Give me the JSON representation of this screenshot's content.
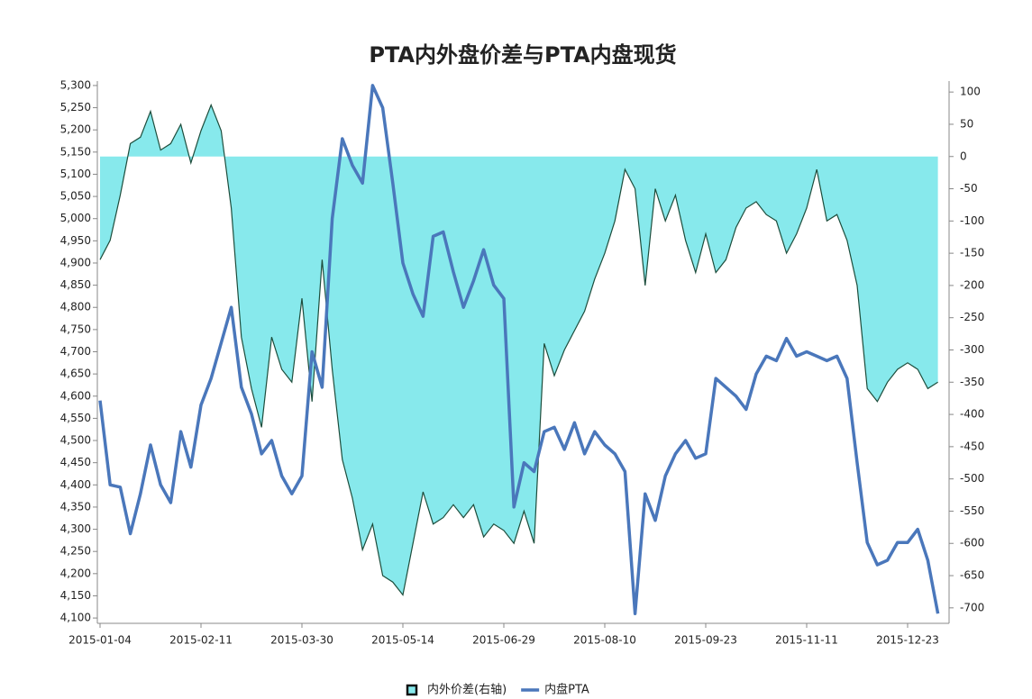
{
  "chart_data": {
    "type": "area_line",
    "title": "PTA内外盘价差与PTA内盘现货",
    "categories": [
      "2015-01-04",
      null,
      null,
      null,
      null,
      null,
      null,
      null,
      null,
      null,
      "2015-02-11",
      null,
      null,
      null,
      null,
      null,
      null,
      null,
      null,
      null,
      "2015-03-30",
      null,
      null,
      null,
      null,
      null,
      null,
      null,
      null,
      null,
      "2015-05-14",
      null,
      null,
      null,
      null,
      null,
      null,
      null,
      null,
      null,
      "2015-06-29",
      null,
      null,
      null,
      null,
      null,
      null,
      null,
      null,
      null,
      "2015-08-10",
      null,
      null,
      null,
      null,
      null,
      null,
      null,
      null,
      null,
      "2015-09-23",
      null,
      null,
      null,
      null,
      null,
      null,
      null,
      null,
      null,
      "2015-11-11",
      null,
      null,
      null,
      null,
      null,
      null,
      null,
      null,
      null,
      "2015-12-23",
      null,
      null,
      null
    ],
    "series": [
      {
        "name": "内外价差(右轴)",
        "type": "area",
        "axis": "y2",
        "color": "#1d4d3c",
        "fill": "#87e9ec",
        "values": [
          -160,
          -130,
          -60,
          20,
          30,
          70,
          10,
          20,
          50,
          -10,
          40,
          80,
          40,
          -80,
          -280,
          -360,
          -420,
          -280,
          -330,
          -350,
          -220,
          -380,
          -160,
          -330,
          -470,
          -530,
          -610,
          -570,
          -650,
          -660,
          -680,
          -600,
          -520,
          -570,
          -560,
          -540,
          -560,
          -540,
          -590,
          -570,
          -580,
          -600,
          -550,
          -600,
          -290,
          -340,
          -300,
          -270,
          -240,
          -190,
          -150,
          -100,
          -20,
          -50,
          -200,
          -50,
          -100,
          -60,
          -130,
          -180,
          -120,
          -180,
          -160,
          -110,
          -80,
          -70,
          -90,
          -100,
          -150,
          -120,
          -80,
          -20,
          -100,
          -90,
          -130,
          -200,
          -360,
          -380,
          -350,
          -330,
          -320,
          -330,
          -360,
          -350
        ]
      },
      {
        "name": "内盘PTA",
        "type": "line",
        "axis": "y",
        "color": "#4a77bb",
        "values": [
          4590,
          4400,
          4395,
          4290,
          4380,
          4490,
          4400,
          4360,
          4520,
          4440,
          4580,
          4640,
          4720,
          4800,
          4620,
          4560,
          4470,
          4500,
          4420,
          4380,
          4420,
          4700,
          4620,
          5000,
          5180,
          5120,
          5080,
          5300,
          5250,
          5080,
          4900,
          4830,
          4780,
          4960,
          4970,
          4880,
          4800,
          4860,
          4930,
          4850,
          4820,
          4350,
          4450,
          4430,
          4520,
          4530,
          4480,
          4540,
          4470,
          4520,
          4490,
          4470,
          4430,
          4110,
          4380,
          4320,
          4420,
          4470,
          4500,
          4460,
          4470,
          4640,
          4620,
          4600,
          4570,
          4650,
          4690,
          4680,
          4730,
          4690,
          4700,
          4690,
          4680,
          4690,
          4640,
          4450,
          4270,
          4220,
          4230,
          4270,
          4270,
          4300,
          4230,
          4110
        ]
      }
    ],
    "ylim": [
      4088,
      5310
    ],
    "yticks": [
      {
        "value": 4100,
        "label": "4,100"
      },
      {
        "value": 4150,
        "label": "4,150"
      },
      {
        "value": 4200,
        "label": "4,200"
      },
      {
        "value": 4250,
        "label": "4,250"
      },
      {
        "value": 4300,
        "label": "4,300"
      },
      {
        "value": 4350,
        "label": "4,350"
      },
      {
        "value": 4400,
        "label": "4,400"
      },
      {
        "value": 4450,
        "label": "4,450"
      },
      {
        "value": 4500,
        "label": "4,500"
      },
      {
        "value": 4550,
        "label": "4,550"
      },
      {
        "value": 4600,
        "label": "4,600"
      },
      {
        "value": 4650,
        "label": "4,650"
      },
      {
        "value": 4700,
        "label": "4,700"
      },
      {
        "value": 4750,
        "label": "4,750"
      },
      {
        "value": 4800,
        "label": "4,800"
      },
      {
        "value": 4850,
        "label": "4,850"
      },
      {
        "value": 4900,
        "label": "4,900"
      },
      {
        "value": 4950,
        "label": "4,950"
      },
      {
        "value": 5000,
        "label": "5,000"
      },
      {
        "value": 5050,
        "label": "5,050"
      },
      {
        "value": 5100,
        "label": "5,100"
      },
      {
        "value": 5150,
        "label": "5,150"
      },
      {
        "value": 5200,
        "label": "5,200"
      },
      {
        "value": 5250,
        "label": "5,250"
      },
      {
        "value": 5300,
        "label": "5,300"
      }
    ],
    "y2lim": [
      -724,
      117
    ],
    "y2ticks": [
      -700,
      -650,
      -600,
      -550,
      -500,
      -450,
      -400,
      -350,
      -300,
      -250,
      -200,
      -150,
      -100,
      -50,
      0,
      50,
      100
    ],
    "grid": false
  }
}
